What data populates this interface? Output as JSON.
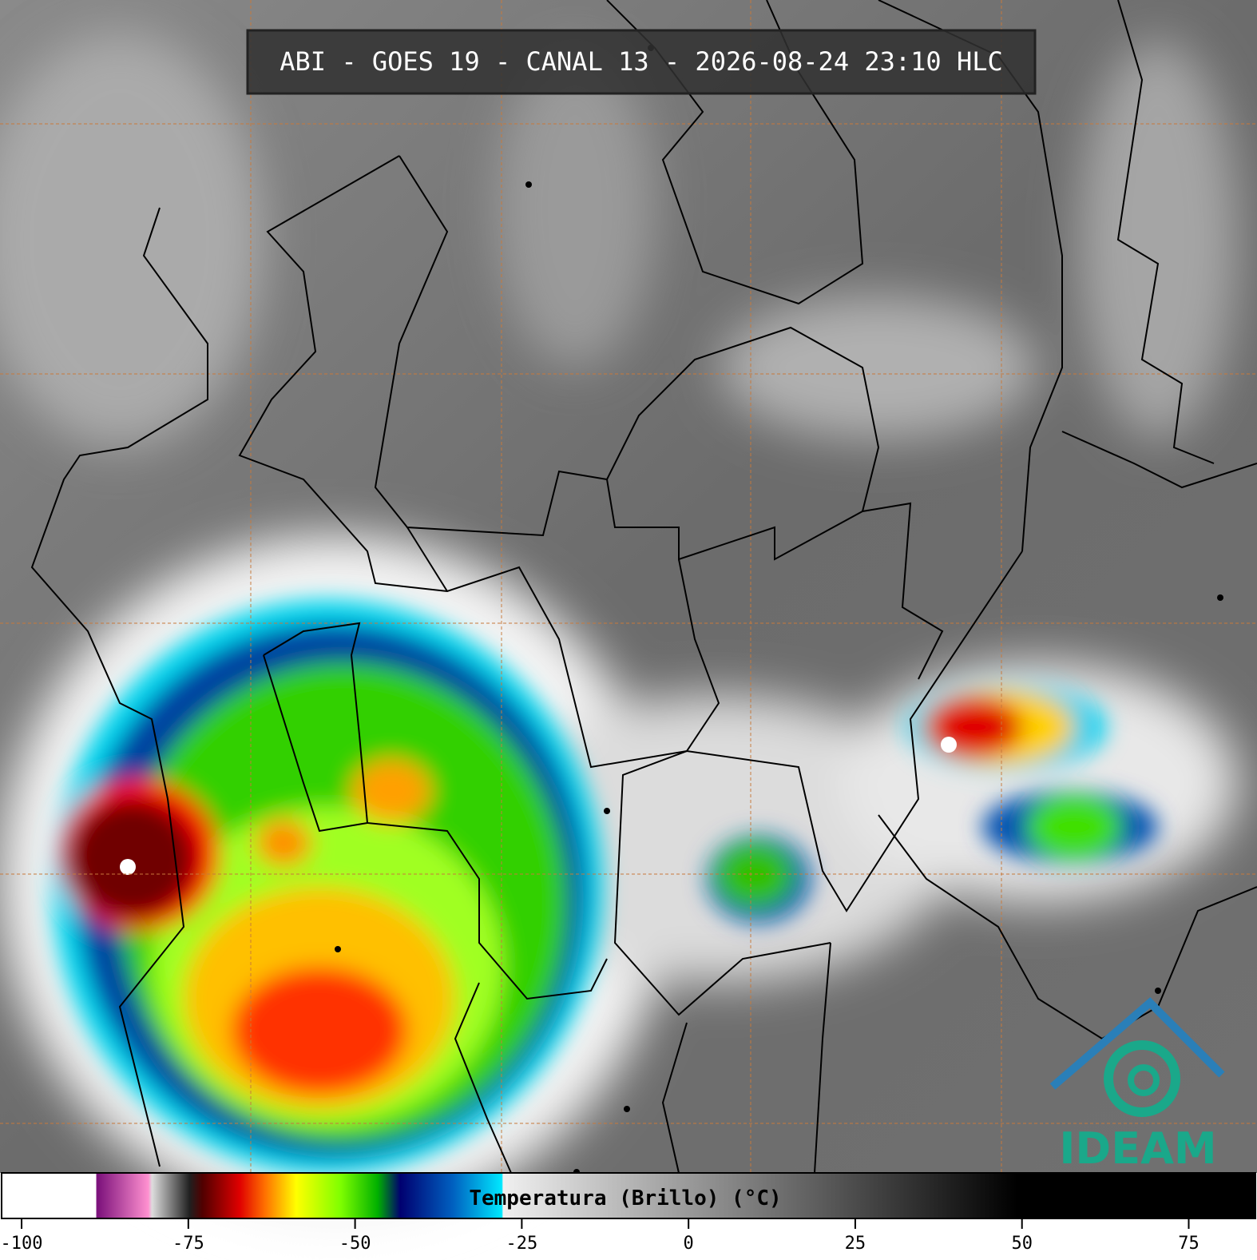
{
  "title": "ABI - GOES 19 - CANAL 13 - 2026-08-24 23:10 HLC",
  "colorbar": {
    "label": "Temperatura (Brillo) (°C)",
    "lim": [
      -103,
      85
    ],
    "ticks": [
      -100,
      -75,
      -50,
      -25,
      0,
      25,
      50,
      75
    ]
  },
  "logo": "IDEAM"
}
